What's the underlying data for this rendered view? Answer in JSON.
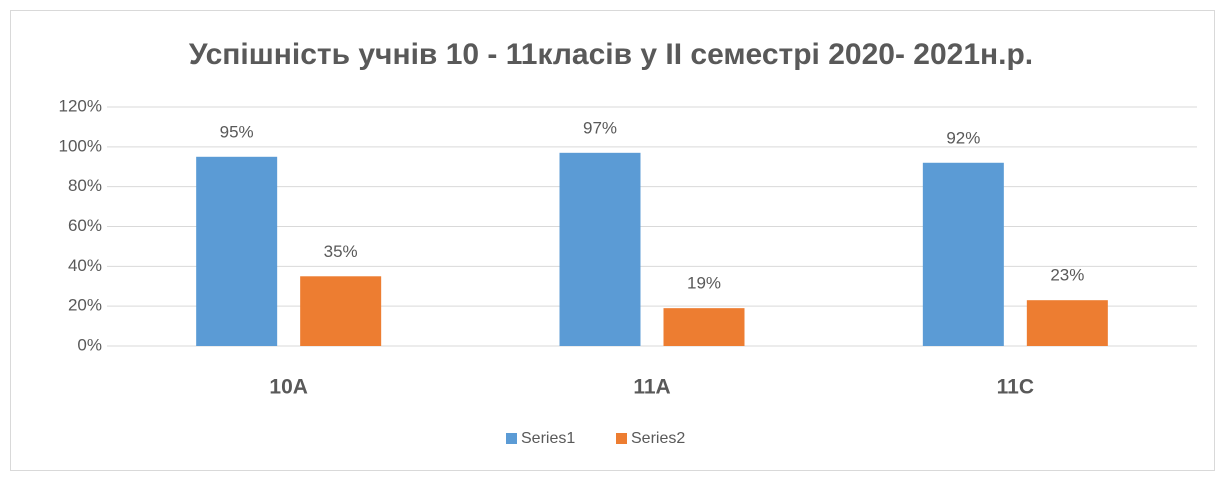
{
  "chart_data": {
    "type": "bar",
    "title": "Успішність учнів 10 - 11класів у ІІ семестрі 2020- 2021н.р.",
    "categories": [
      "10A",
      "11A",
      "11C"
    ],
    "series": [
      {
        "name": "Series1",
        "color": "#5b9bd5",
        "values": [
          95,
          97,
          92
        ],
        "value_labels": [
          "95%",
          "97%",
          "92%"
        ]
      },
      {
        "name": "Series2",
        "color": "#ed7d31",
        "values": [
          35,
          19,
          23
        ],
        "value_labels": [
          "35%",
          "19%",
          "23%"
        ]
      }
    ],
    "ylim": [
      0,
      120
    ],
    "yticks": [
      {
        "value": 0,
        "label": "0%"
      },
      {
        "value": 20,
        "label": "20%"
      },
      {
        "value": 40,
        "label": "40%"
      },
      {
        "value": 60,
        "label": "60%"
      },
      {
        "value": 80,
        "label": "80%"
      },
      {
        "value": 100,
        "label": "100%"
      },
      {
        "value": 120,
        "label": "120%"
      }
    ],
    "grid": true,
    "legend": "bottom"
  }
}
